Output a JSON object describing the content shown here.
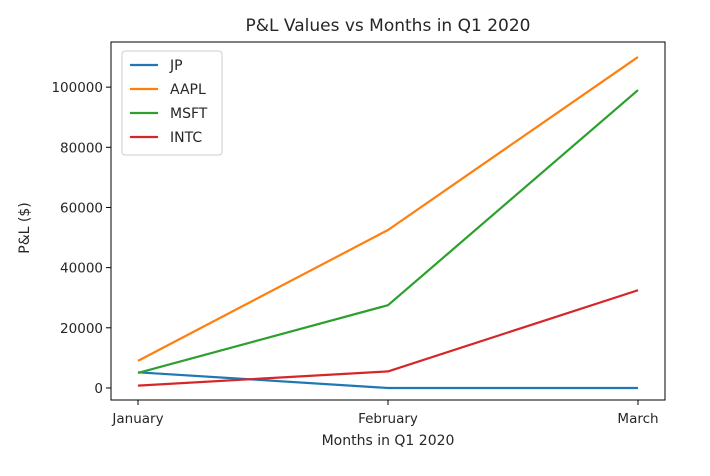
{
  "chart_data": {
    "type": "line",
    "title": "P&L Values vs Months in Q1 2020",
    "xlabel": "Months in Q1 2020",
    "ylabel": "P&L ($)",
    "categories": [
      "January",
      "February",
      "March"
    ],
    "ylim": [
      -4000,
      115000
    ],
    "yticks": [
      0,
      20000,
      40000,
      60000,
      80000,
      100000
    ],
    "grid": false,
    "legend_position": "top-left",
    "series": [
      {
        "name": "JP",
        "color": "#1f77b4",
        "values": [
          5200,
          0,
          0
        ]
      },
      {
        "name": "AAPL",
        "color": "#ff7f0e",
        "values": [
          9000,
          52500,
          110000
        ]
      },
      {
        "name": "MSFT",
        "color": "#2ca02c",
        "values": [
          5000,
          27500,
          99000
        ]
      },
      {
        "name": "INTC",
        "color": "#d62728",
        "values": [
          800,
          5500,
          32500
        ]
      }
    ]
  }
}
